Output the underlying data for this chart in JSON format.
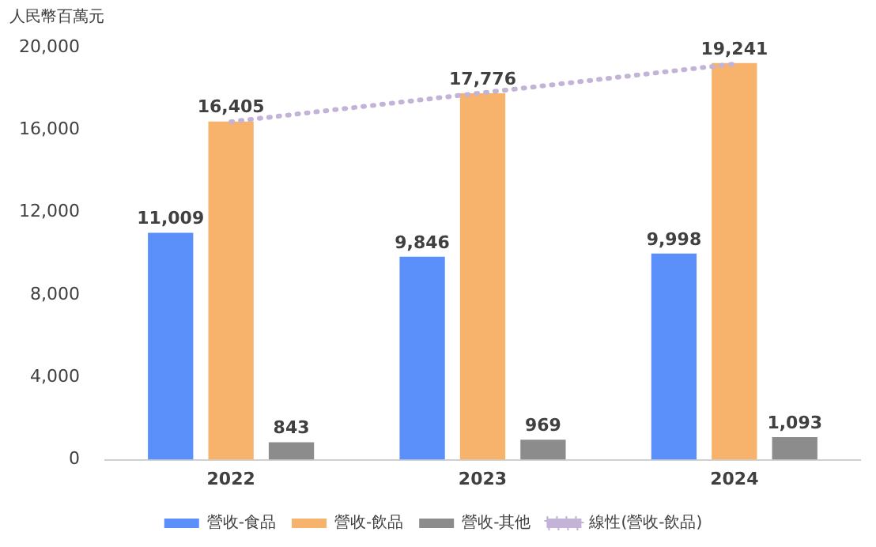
{
  "chart_data": {
    "type": "bar",
    "ylabel": "人民幣百萬元",
    "categories": [
      "2022",
      "2023",
      "2024"
    ],
    "series": [
      {
        "name": "營收-食品",
        "color": "#5b8ff9",
        "values": [
          11009,
          9846,
          9998
        ],
        "value_labels": [
          "11,009",
          "9,846",
          "9,998"
        ]
      },
      {
        "name": "營收-飲品",
        "color": "#f7b26b",
        "values": [
          16405,
          17776,
          19241
        ],
        "value_labels": [
          "16,405",
          "17,776",
          "19,241"
        ]
      },
      {
        "name": "營收-其他",
        "color": "#8c8c8c",
        "values": [
          843,
          969,
          1093
        ],
        "value_labels": [
          "843",
          "969",
          "1,093"
        ]
      },
      {
        "name": "線性(營收-飲品)",
        "type": "line",
        "color": "#c3b3d6",
        "line_style": "dotted",
        "marker": "none",
        "values": [
          16400,
          17800,
          19200
        ]
      }
    ],
    "ylim": [
      0,
      20000
    ],
    "yticks": [
      {
        "value": 0,
        "label": "0"
      },
      {
        "value": 4000,
        "label": "4,000"
      },
      {
        "value": 8000,
        "label": "8,000"
      },
      {
        "value": 12000,
        "label": "12,000"
      },
      {
        "value": 16000,
        "label": "16,000"
      },
      {
        "value": 20000,
        "label": "20,000"
      }
    ],
    "grid": false,
    "legend": "bottom"
  }
}
